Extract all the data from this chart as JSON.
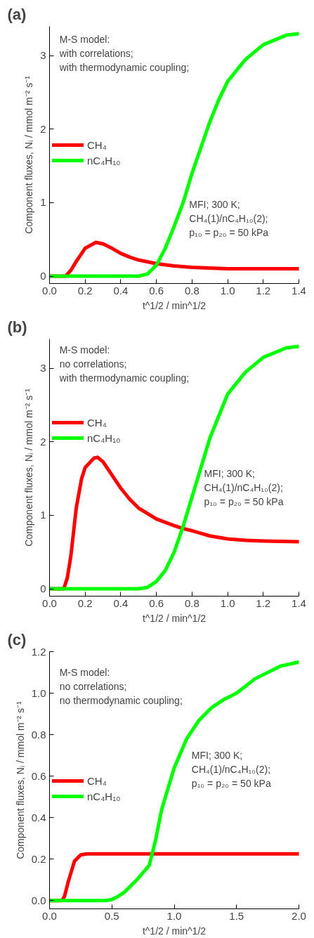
{
  "chart_data": [
    {
      "type": "line",
      "title": "(a)",
      "xlabel": "t^1/2 / min^1/2",
      "ylabel": "Component fluxes, Nᵢ / mmol m⁻² s⁻¹",
      "legend": "left",
      "grid": false,
      "annotations": [
        "M-S model:\nwith correlations;\nwith thermodynamic coupling;",
        "MFI; 300 K;\nCH₄(1)/nC₄H₁₀(2);\np₁₀ = p₂₀ = 50 kPa"
      ],
      "xlim": [
        0,
        1.4
      ],
      "ylim": [
        -0.1,
        3.4
      ],
      "xticks": [
        {
          "value": 0,
          "label": "0.0"
        },
        0.2,
        0.4,
        0.6,
        0.8,
        {
          "value": 1,
          "label": "1.0"
        },
        1.2,
        1.4
      ],
      "yticks": [
        0,
        1,
        2,
        3
      ],
      "series": [
        {
          "name": "CH₄",
          "color": "#ff0000",
          "x": [
            0,
            0.09,
            0.12,
            0.15,
            0.2,
            0.26,
            0.3,
            0.35,
            0.4,
            0.45,
            0.5,
            0.6,
            0.7,
            0.8,
            1.0,
            1.2,
            1.4
          ],
          "values": [
            0,
            0,
            0.08,
            0.2,
            0.38,
            0.46,
            0.44,
            0.38,
            0.31,
            0.26,
            0.22,
            0.17,
            0.14,
            0.12,
            0.1,
            0.1,
            0.1
          ]
        },
        {
          "name": "nC₄H₁₀",
          "color": "#00ff00",
          "x": [
            0,
            0.5,
            0.55,
            0.6,
            0.65,
            0.7,
            0.75,
            0.8,
            0.85,
            0.9,
            0.95,
            1.0,
            1.1,
            1.2,
            1.3,
            1.33,
            1.4
          ],
          "values": [
            0,
            0,
            0.03,
            0.15,
            0.38,
            0.68,
            1.0,
            1.4,
            1.75,
            2.1,
            2.4,
            2.65,
            2.95,
            3.15,
            3.25,
            3.28,
            3.3
          ]
        }
      ]
    },
    {
      "type": "line",
      "title": "(b)",
      "xlabel": "t^1/2 / min^1/2",
      "ylabel": "Component fluxes, Nᵢ / mmol m⁻² s⁻¹",
      "legend": "left",
      "grid": false,
      "annotations": [
        "M-S model:\nno correlations;\nwith thermodynamic coupling;",
        "MFI; 300 K;\nCH₄(1)/nC₄H₁₀(2);\np₁₀ = p₂₀ = 50 kPa"
      ],
      "xlim": [
        0,
        1.4
      ],
      "ylim": [
        -0.1,
        3.4
      ],
      "xticks": [
        {
          "value": 0,
          "label": "0.0"
        },
        0.2,
        0.4,
        0.6,
        0.8,
        {
          "value": 1,
          "label": "1.0"
        },
        1.2,
        1.4
      ],
      "yticks": [
        0,
        1,
        2,
        3
      ],
      "series": [
        {
          "name": "CH₄",
          "color": "#ff0000",
          "x": [
            0,
            0.08,
            0.1,
            0.12,
            0.15,
            0.18,
            0.2,
            0.25,
            0.27,
            0.3,
            0.35,
            0.4,
            0.45,
            0.5,
            0.6,
            0.7,
            0.75,
            0.8,
            0.9,
            1.0,
            1.1,
            1.2,
            1.4
          ],
          "values": [
            0,
            0,
            0.15,
            0.45,
            1.1,
            1.5,
            1.65,
            1.78,
            1.79,
            1.73,
            1.55,
            1.37,
            1.22,
            1.1,
            0.95,
            0.86,
            0.82,
            0.79,
            0.72,
            0.68,
            0.66,
            0.65,
            0.64
          ]
        },
        {
          "name": "nC₄H₁₀",
          "color": "#00ff00",
          "x": [
            0,
            0.5,
            0.55,
            0.6,
            0.65,
            0.7,
            0.75,
            0.8,
            0.85,
            0.9,
            0.95,
            1.0,
            1.1,
            1.2,
            1.33,
            1.4
          ],
          "values": [
            0,
            0,
            0.02,
            0.1,
            0.25,
            0.5,
            0.85,
            1.25,
            1.65,
            2.05,
            2.35,
            2.65,
            2.95,
            3.15,
            3.28,
            3.3
          ]
        }
      ]
    },
    {
      "type": "line",
      "title": "(c)",
      "xlabel": "t^1/2 / min^1/2",
      "ylabel": "Component fluxes, Nᵢ / mmol m⁻² s⁻¹",
      "legend": "left",
      "grid": false,
      "annotations": [
        "M-S model:\nno correlations;\nno thermodynamic coupling;",
        "MFI; 300 K;\nCH₄(1)/nC₄H₁₀(2);\np₁₀ = p₂₀ = 50 kPa"
      ],
      "xlim": [
        0,
        2
      ],
      "ylim": [
        -0.04,
        1.2
      ],
      "xticks": [
        {
          "value": 0,
          "label": "0.0"
        },
        0.5,
        {
          "value": 1,
          "label": "1.0"
        },
        1.5,
        {
          "value": 2,
          "label": "2.0"
        }
      ],
      "yticks": [
        {
          "value": 0,
          "label": "0.0"
        },
        0.2,
        0.4,
        0.6,
        0.8,
        {
          "value": 1,
          "label": "1.0"
        },
        1.2
      ],
      "series": [
        {
          "name": "CH₄",
          "color": "#ff0000",
          "x": [
            0,
            0.1,
            0.12,
            0.15,
            0.2,
            0.25,
            0.3,
            2.0
          ],
          "values": [
            0,
            0,
            0.02,
            0.09,
            0.19,
            0.22,
            0.225,
            0.225
          ]
        },
        {
          "name": "nC₄H₁₀",
          "color": "#00ff00",
          "x": [
            0,
            0.45,
            0.5,
            0.55,
            0.6,
            0.7,
            0.8,
            0.85,
            0.9,
            1.0,
            1.1,
            1.2,
            1.3,
            1.4,
            1.5,
            1.65,
            1.85,
            2.0
          ],
          "values": [
            0,
            0,
            0.005,
            0.02,
            0.04,
            0.1,
            0.17,
            0.29,
            0.44,
            0.64,
            0.78,
            0.87,
            0.93,
            0.97,
            1.0,
            1.07,
            1.13,
            1.15
          ]
        }
      ]
    }
  ]
}
